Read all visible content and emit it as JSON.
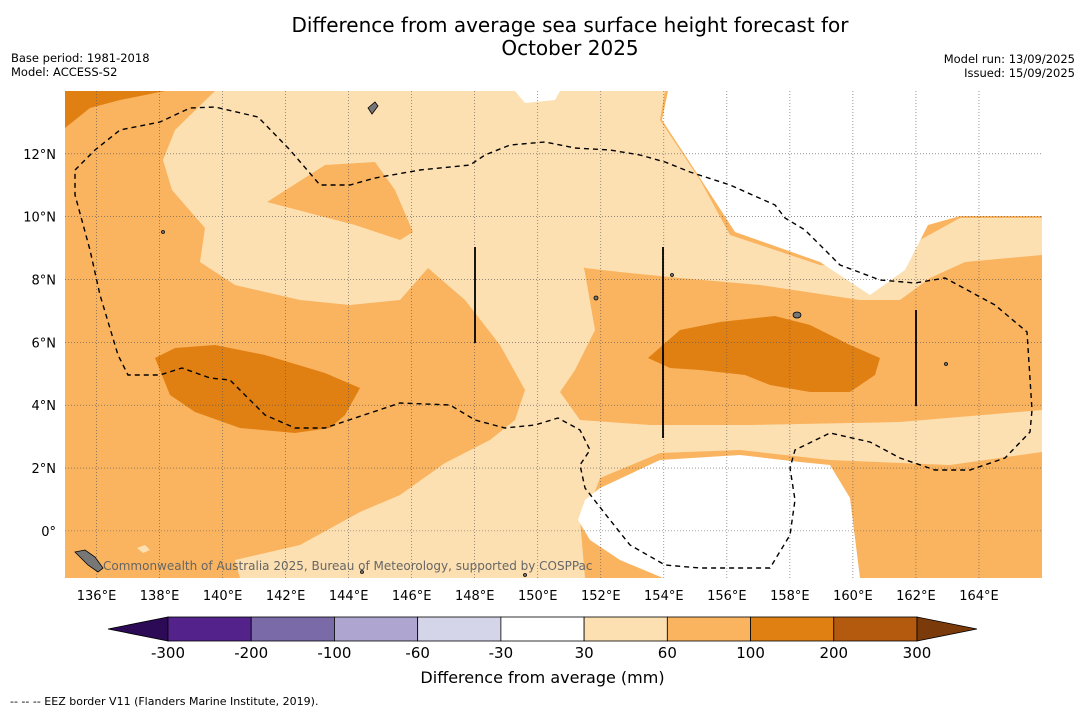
{
  "title_line1": "Difference from average sea surface height forecast for",
  "title_line2": "October 2025",
  "meta_left": {
    "base_period": "Base period: 1981-2018",
    "model": "Model: ACCESS-S2"
  },
  "meta_right": {
    "model_run": "Model run: 13/09/2025",
    "issued": "Issued: 15/09/2025"
  },
  "copyright": "Commonwealth of Australia 2025, Bureau of Meteorology, supported by COSPPac",
  "map": {
    "lon_range": [
      135,
      166
    ],
    "lat_range": [
      -1.5,
      14
    ],
    "lon_ticks": [
      "136°E",
      "138°E",
      "140°E",
      "142°E",
      "144°E",
      "146°E",
      "148°E",
      "150°E",
      "152°E",
      "154°E",
      "156°E",
      "158°E",
      "160°E",
      "162°E",
      "164°E"
    ],
    "lat_ticks": [
      "12°N",
      "10°N",
      "8°N",
      "6°N",
      "4°N",
      "2°N",
      "0°"
    ],
    "grid": true
  },
  "colorbar": {
    "label": "Difference from average (mm)",
    "boundaries": [
      "-300",
      "-200",
      "-100",
      "-60",
      "-30",
      "30",
      "60",
      "100",
      "200",
      "300"
    ],
    "colors": [
      "#2d0a56",
      "#53238b",
      "#7b6aa8",
      "#aea6d0",
      "#d5d5ea",
      "#ffffff",
      "#fde0b2",
      "#fab45f",
      "#e18012",
      "#b35a0e",
      "#7a3a0a"
    ],
    "extend": "both"
  },
  "footer": "--  --  -- EEZ border V11 (Flanders Marine Institute, 2019)."
}
